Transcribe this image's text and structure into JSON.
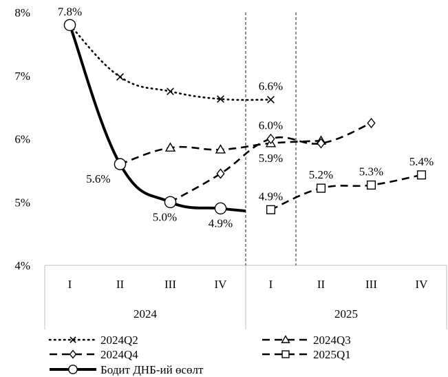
{
  "chart_data": {
    "type": "line",
    "y_unit": "%",
    "ylim": [
      4,
      8
    ],
    "yticks": [
      "4%",
      "5%",
      "6%",
      "7%",
      "8%"
    ],
    "categories": [
      "I",
      "II",
      "III",
      "IV",
      "I",
      "II",
      "III",
      "IV"
    ],
    "groups": [
      {
        "label": "2024",
        "span": [
          0,
          3
        ]
      },
      {
        "label": "2025",
        "span": [
          4,
          7
        ]
      }
    ],
    "forecast_window": [
      3.5,
      4.5
    ],
    "series": [
      {
        "name": "2024Q2",
        "style": "dotted",
        "marker": "x",
        "points": [
          [
            0,
            7.8
          ],
          [
            1,
            6.98
          ],
          [
            2,
            6.75
          ],
          [
            3,
            6.63
          ],
          [
            4,
            6.62
          ]
        ]
      },
      {
        "name": "2024Q3",
        "style": "dashed",
        "marker": "triangle",
        "points": [
          [
            1,
            5.6
          ],
          [
            2,
            5.86
          ],
          [
            3,
            5.83
          ],
          [
            4,
            5.93
          ],
          [
            5,
            5.97
          ]
        ]
      },
      {
        "name": "2024Q4",
        "style": "dashed",
        "marker": "diamond",
        "points": [
          [
            2,
            5.0
          ],
          [
            3,
            5.45
          ],
          [
            4,
            6.0
          ],
          [
            5,
            5.93
          ],
          [
            6,
            6.25
          ]
        ]
      },
      {
        "name": "2025Q1",
        "style": "dashed",
        "marker": "square",
        "points": [
          [
            4,
            4.88
          ],
          [
            5,
            5.22
          ],
          [
            6,
            5.27
          ],
          [
            7,
            5.43
          ]
        ]
      },
      {
        "name": "Бодит ДНБ-ий өсөлт",
        "style": "solid",
        "marker": "circle",
        "points": [
          [
            0,
            7.8
          ],
          [
            1,
            5.6
          ],
          [
            2,
            5.0
          ],
          [
            3,
            4.9
          ],
          [
            3.5,
            4.86
          ]
        ]
      }
    ],
    "data_labels": [
      {
        "text": "7.8%",
        "x": 0,
        "y": 7.8,
        "pos": "above"
      },
      {
        "text": "5.6%",
        "x": 1,
        "y": 5.6,
        "pos": "left"
      },
      {
        "text": "5.0%",
        "x": 2,
        "y": 5.0,
        "pos": "below-left"
      },
      {
        "text": "4.9%",
        "x": 3,
        "y": 4.9,
        "pos": "below"
      },
      {
        "text": "6.6%",
        "x": 4,
        "y": 6.62,
        "pos": "above"
      },
      {
        "text": "6.0%",
        "x": 4,
        "y": 6.0,
        "pos": "above"
      },
      {
        "text": "5.9%",
        "x": 4,
        "y": 5.93,
        "pos": "below"
      },
      {
        "text": "4.9%",
        "x": 4,
        "y": 4.88,
        "pos": "above"
      },
      {
        "text": "5.2%",
        "x": 5,
        "y": 5.22,
        "pos": "above"
      },
      {
        "text": "5.3%",
        "x": 6,
        "y": 5.27,
        "pos": "above"
      },
      {
        "text": "5.4%",
        "x": 7,
        "y": 5.43,
        "pos": "above"
      }
    ],
    "grid": false,
    "legend_position": "bottom"
  }
}
